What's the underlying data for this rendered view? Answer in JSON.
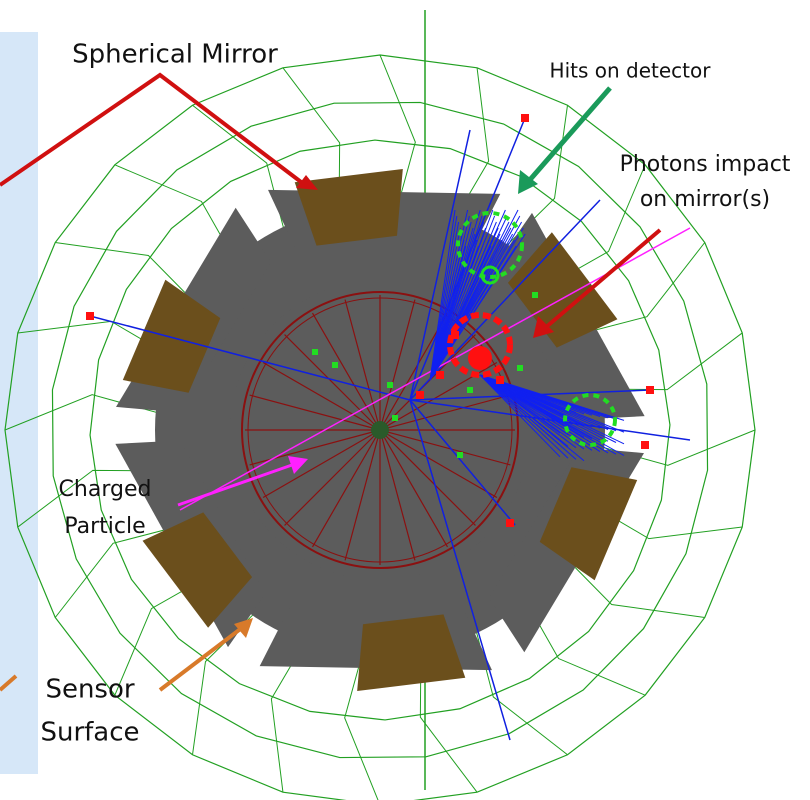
{
  "annotations": [
    {
      "lines": [
        "Spherical Mirror"
      ]
    },
    {
      "lines": [
        "Hits on detector"
      ]
    },
    {
      "lines": [
        "Photons impact",
        "on mirror(s)"
      ]
    },
    {
      "lines": [
        "Charged",
        "Particle"
      ]
    },
    {
      "lines": [
        "Sensor",
        "Surface"
      ]
    }
  ]
}
